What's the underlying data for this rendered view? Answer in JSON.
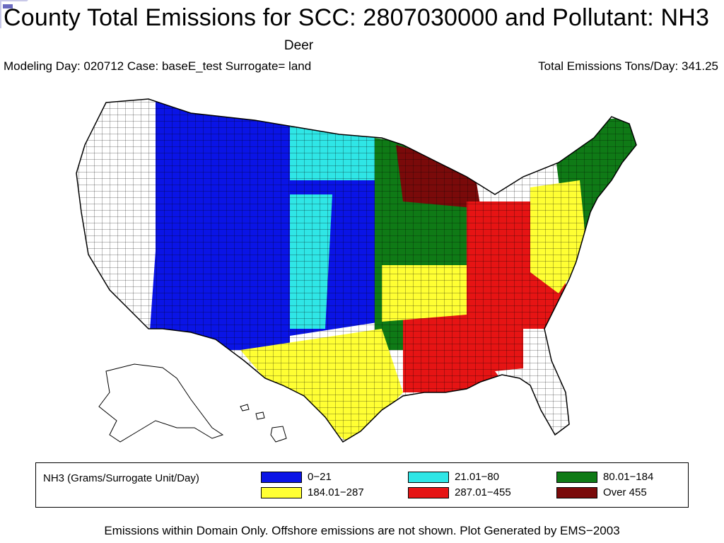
{
  "header": {
    "title": "County Total Emissions for SCC: 2807030000 and Pollutant: NH3",
    "subtitle": "Deer",
    "info_left": "Modeling Day: 020712 Case: baseE_test Surrogate= land",
    "info_right": "Total Emissions Tons/Day: 341.25"
  },
  "legend": {
    "title": "NH3 (Grams/Surrogate Unit/Day)",
    "items": [
      {
        "label": "0−21",
        "color": "#0a14e6"
      },
      {
        "label": "21.01−80",
        "color": "#2fe6e6"
      },
      {
        "label": "80.01−184",
        "color": "#0f7a16"
      },
      {
        "label": "184.01−287",
        "color": "#ffff33"
      },
      {
        "label": "287.01−455",
        "color": "#e61414"
      },
      {
        "label": "Over 455",
        "color": "#7a0a0a"
      }
    ]
  },
  "map_regions": [
    {
      "region": "pacific-west",
      "level": "none"
    },
    {
      "region": "northern-rockies",
      "level": "0−21"
    },
    {
      "region": "southwest",
      "level": "0−21"
    },
    {
      "region": "northern-plains",
      "level": "21.01−80"
    },
    {
      "region": "central-plains",
      "level": "0−21"
    },
    {
      "region": "texas",
      "level": "184.01−287"
    },
    {
      "region": "upper-midwest",
      "level": "Over 455"
    },
    {
      "region": "ohio-valley",
      "level": "287.01−455"
    },
    {
      "region": "southeast",
      "level": "287.01−455"
    },
    {
      "region": "florida",
      "level": "none"
    },
    {
      "region": "northeast",
      "level": "80.01−184"
    }
  ],
  "footer": "Emissions within Domain Only. Offshore emissions are not shown. Plot Generated by EMS−2003"
}
